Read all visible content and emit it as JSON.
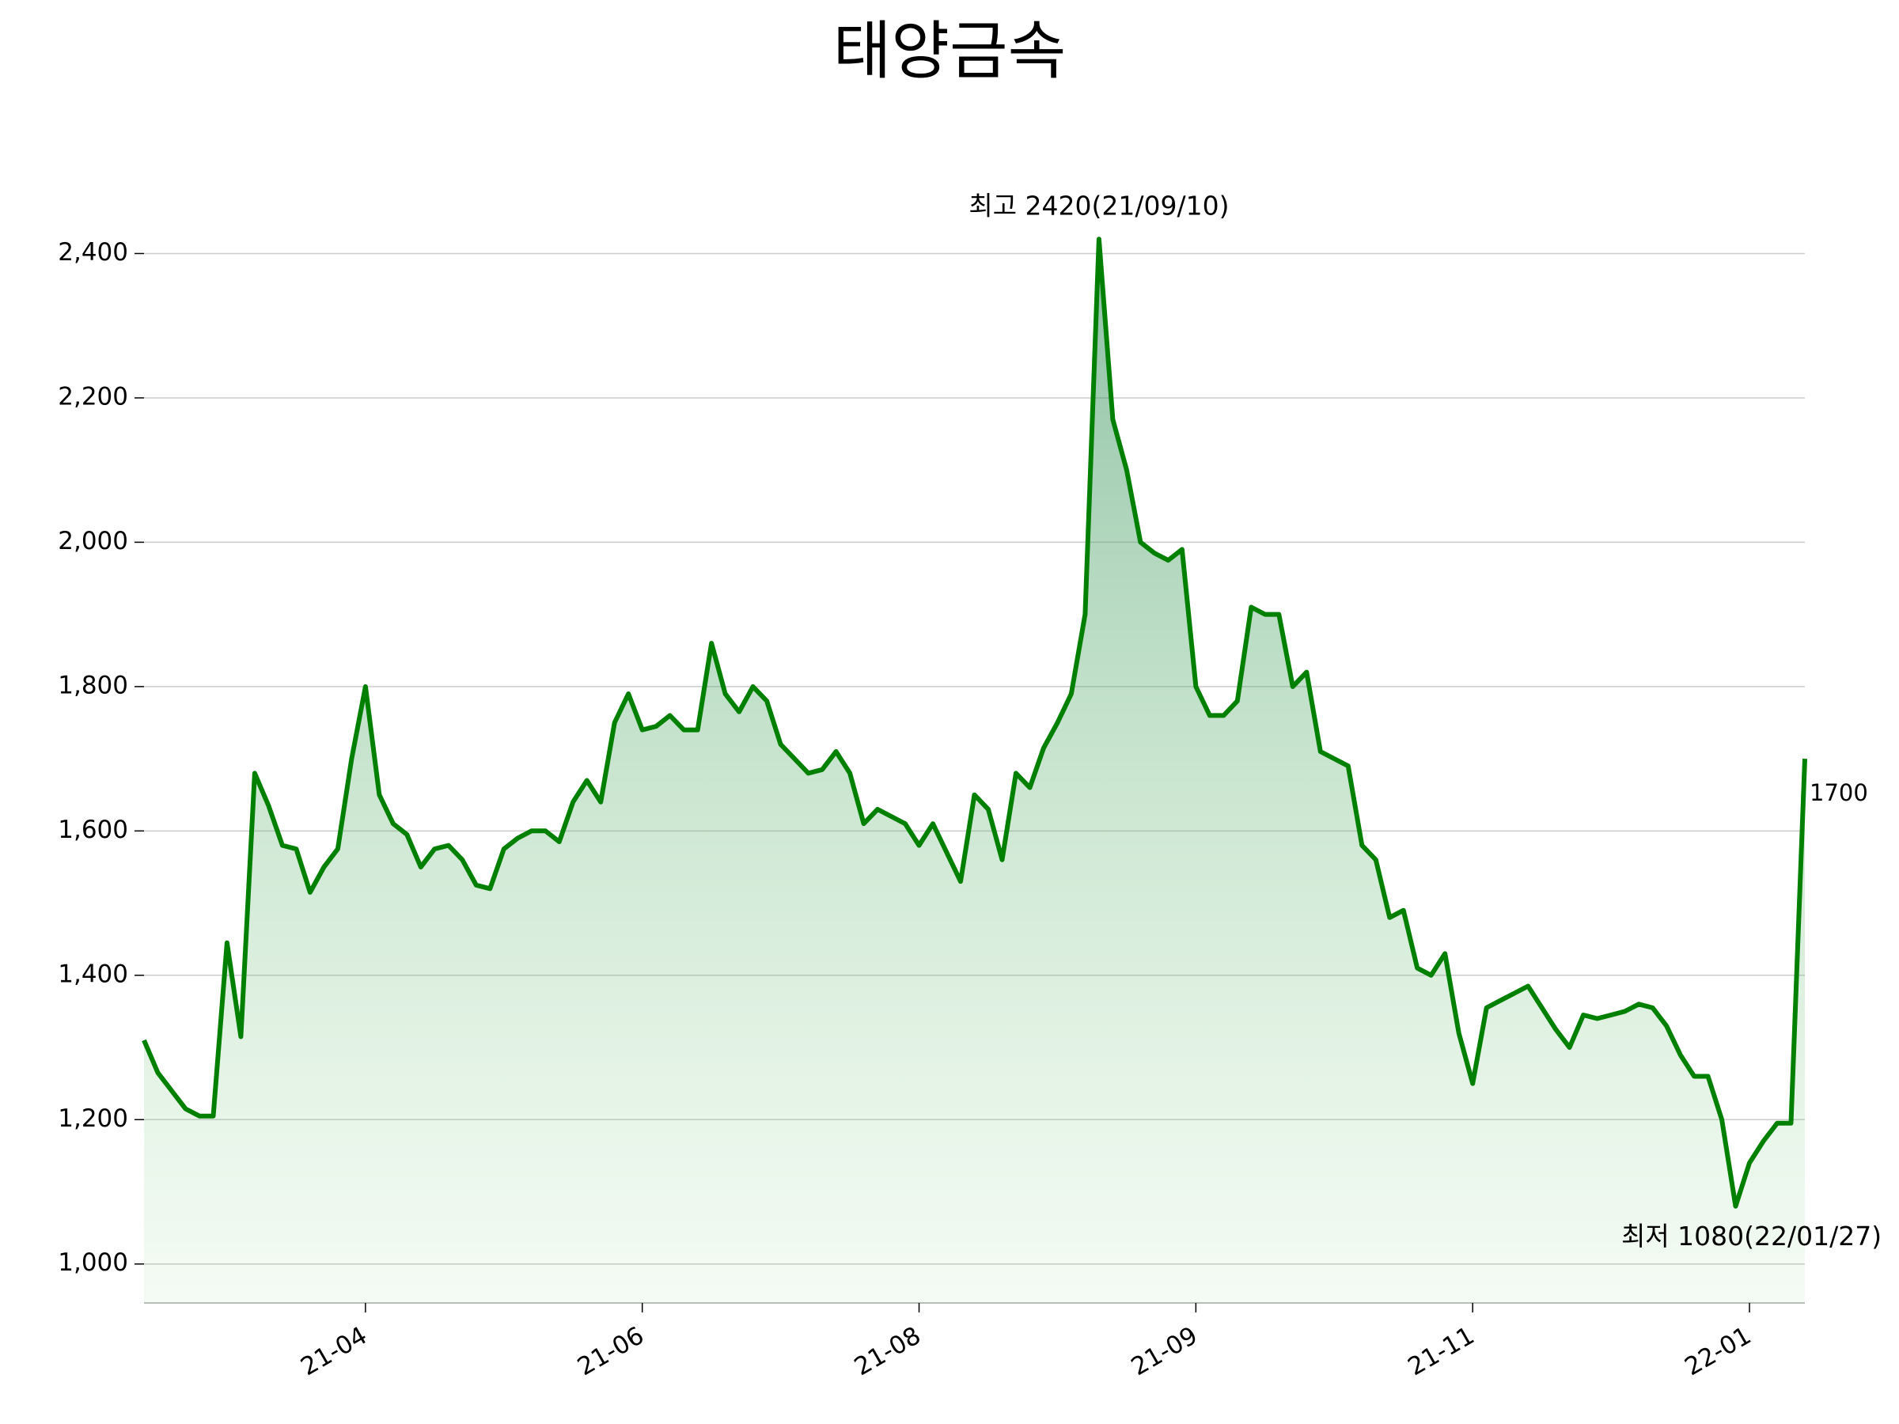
{
  "chart_data": {
    "type": "line",
    "title": "태양금속",
    "categories": [
      null,
      null,
      null,
      null,
      null,
      null,
      null,
      null,
      null,
      null,
      null,
      null,
      null,
      null,
      null,
      null,
      "21-04",
      null,
      null,
      null,
      null,
      null,
      null,
      null,
      null,
      null,
      null,
      null,
      null,
      null,
      null,
      null,
      null,
      null,
      null,
      null,
      "21-06",
      null,
      null,
      null,
      null,
      null,
      null,
      null,
      null,
      null,
      null,
      null,
      null,
      null,
      null,
      null,
      null,
      null,
      null,
      null,
      "21-08",
      null,
      null,
      null,
      null,
      null,
      null,
      null,
      null,
      null,
      null,
      null,
      null,
      null,
      null,
      null,
      null,
      null,
      null,
      null,
      "21-09",
      null,
      null,
      null,
      null,
      null,
      null,
      null,
      null,
      null,
      null,
      null,
      null,
      null,
      null,
      null,
      null,
      null,
      null,
      null,
      "21-11",
      null,
      null,
      null,
      null,
      null,
      null,
      null,
      null,
      null,
      null,
      null,
      null,
      null,
      null,
      null,
      null,
      null,
      null,
      null,
      "22-01",
      null,
      null,
      null,
      null
    ],
    "values": [
      1310,
      1265,
      1240,
      1215,
      1205,
      1205,
      1445,
      1315,
      1680,
      1635,
      1580,
      1575,
      1515,
      1550,
      1575,
      1700,
      1800,
      1650,
      1610,
      1595,
      1550,
      1575,
      1580,
      1560,
      1525,
      1520,
      1575,
      1590,
      1600,
      1600,
      1585,
      1640,
      1670,
      1640,
      1750,
      1790,
      1740,
      1745,
      1760,
      1740,
      1740,
      1860,
      1790,
      1765,
      1800,
      1780,
      1720,
      1700,
      1680,
      1685,
      1710,
      1680,
      1610,
      1630,
      1620,
      1610,
      1580,
      1610,
      1570,
      1530,
      1650,
      1630,
      1560,
      1680,
      1660,
      1715,
      1750,
      1790,
      1900,
      2420,
      2170,
      2100,
      2000,
      1985,
      1975,
      1990,
      1800,
      1760,
      1760,
      1780,
      1910,
      1900,
      1900,
      1800,
      1820,
      1710,
      1700,
      1690,
      1580,
      1560,
      1480,
      1490,
      1410,
      1400,
      1430,
      1320,
      1250,
      1355,
      1365,
      1375,
      1385,
      1355,
      1325,
      1300,
      1345,
      1340,
      1345,
      1350,
      1360,
      1355,
      1330,
      1290,
      1260,
      1260,
      1200,
      1080,
      1140,
      1170,
      1195,
      1195,
      1700
    ],
    "color": "#008000",
    "ylim": [
      946,
      2520
    ],
    "yticks": [
      {
        "value": 1000,
        "label": "1,000"
      },
      {
        "value": 1200,
        "label": "1,200"
      },
      {
        "value": 1400,
        "label": "1,400"
      },
      {
        "value": 1600,
        "label": "1,600"
      },
      {
        "value": 1800,
        "label": "1,800"
      },
      {
        "value": 2000,
        "label": "2,000"
      },
      {
        "value": 2200,
        "label": "2,200"
      },
      {
        "value": 2400,
        "label": "2,400"
      }
    ],
    "grid": true,
    "max_label": "최고 2420(21/09/10)",
    "max_color": "#ff0000",
    "min_label": "최저 1080(22/01/27)",
    "min_color": "#0000ff"
  }
}
